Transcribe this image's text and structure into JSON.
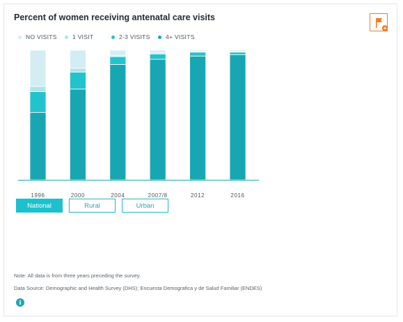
{
  "title": "Percent of women receiving antenatal care visits",
  "tabs": [
    {
      "label": "National",
      "active": true
    },
    {
      "label": "Rural",
      "active": false
    },
    {
      "label": "Urban",
      "active": false
    }
  ],
  "note": "Note: All data is from three years preceding the survey.",
  "source": "Data Source: Demographic and Health Survey (DHS); Encuesta Demografica y de Salud Familiar (ENDES)",
  "icons": {
    "flag": "flag-add-icon",
    "info": "info-icon"
  },
  "info_glyph": "i",
  "colors": {
    "accent": "#1cc1cd",
    "flag_orange": "#ef7d24",
    "series": [
      "#d3eef2",
      "#b0e3ea",
      "#22c3cc",
      "#18a7b2"
    ]
  },
  "chart_data": {
    "type": "bar",
    "stacked": true,
    "categories": [
      "1996",
      "2000",
      "2004",
      "2007/8",
      "2012",
      "2016"
    ],
    "series": [
      {
        "name": "NO VISITS",
        "color": "#d3eef2",
        "values": [
          28,
          14,
          4,
          2,
          1,
          1
        ]
      },
      {
        "name": "1 VISIT",
        "color": "#b0e3ea",
        "values": [
          4,
          3,
          1,
          1,
          0.5,
          0.5
        ]
      },
      {
        "name": "2-3 VISITS",
        "color": "#22c3cc",
        "values": [
          16,
          13,
          6,
          4,
          3,
          2
        ]
      },
      {
        "name": "4+ VISITS",
        "color": "#18a7b2",
        "values": [
          52,
          70,
          89,
          93,
          95.5,
          96.5
        ]
      }
    ],
    "ylim": [
      0,
      100
    ],
    "legend_position": "top-left",
    "grid": false
  }
}
